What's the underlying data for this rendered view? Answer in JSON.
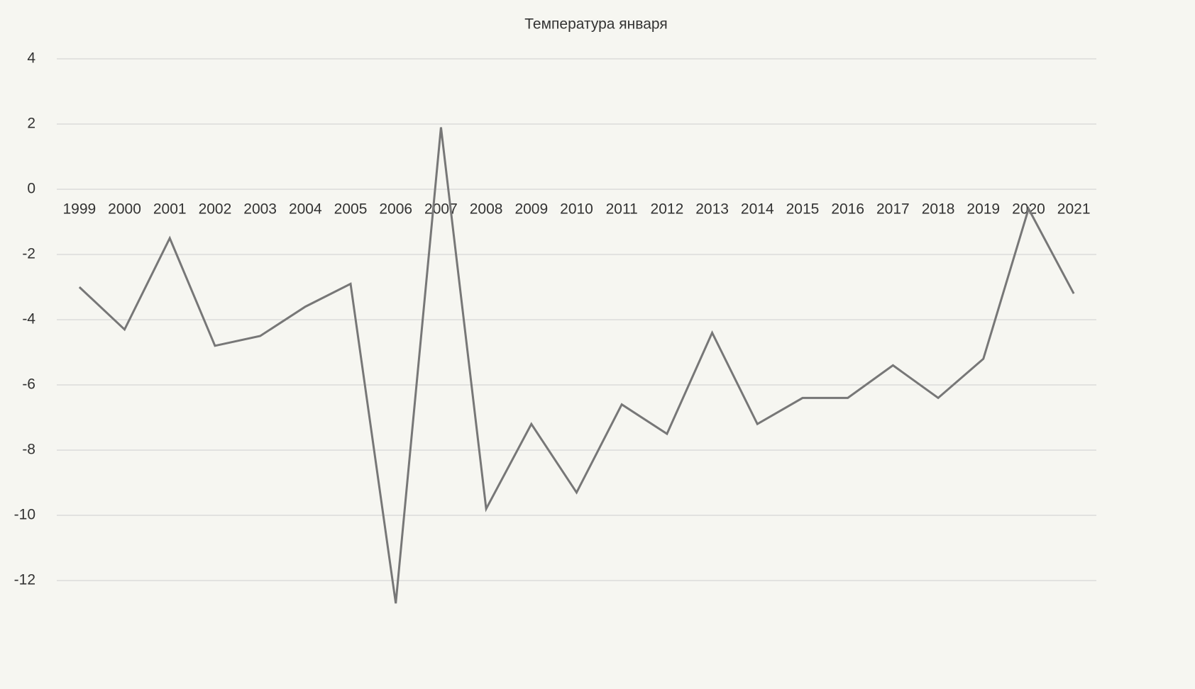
{
  "chart_data": {
    "type": "line",
    "title": "Температура января",
    "categories": [
      "1999",
      "2000",
      "2001",
      "2002",
      "2003",
      "2004",
      "2005",
      "2006",
      "2007",
      "2008",
      "2009",
      "2010",
      "2011",
      "2012",
      "2013",
      "2014",
      "2015",
      "2016",
      "2017",
      "2018",
      "2019",
      "2020",
      "2021"
    ],
    "values": [
      -3.0,
      -4.3,
      -1.5,
      -4.8,
      -4.5,
      -3.6,
      -2.9,
      -12.7,
      1.9,
      -9.8,
      -7.2,
      -9.3,
      -6.6,
      -7.5,
      -4.4,
      -7.2,
      -6.4,
      -6.4,
      -5.4,
      -6.4,
      -5.2,
      -0.6,
      -3.2
    ],
    "color": "#777777",
    "ylim": [
      -14,
      5
    ],
    "yticks": [
      -12,
      -10,
      -8,
      -6,
      -4,
      -2,
      0,
      2,
      4
    ],
    "grid": true
  }
}
